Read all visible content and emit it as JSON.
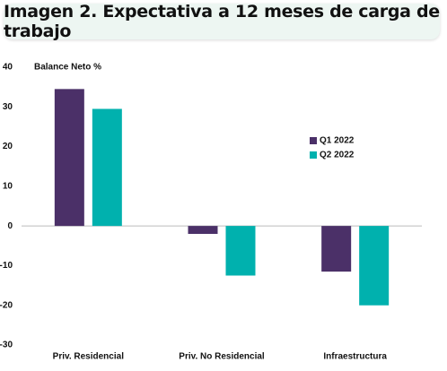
{
  "chart_data": {
    "type": "bar",
    "title": "Imagen 2. Expectativa a 12 meses de carga de trabajo",
    "y_axis_label": "Balance Neto %",
    "categories": [
      "Priv. Residencial",
      "Priv. No Residencial",
      "Infraestructura"
    ],
    "series": [
      {
        "name": "Q1 2022",
        "color": "#4b3068",
        "values": [
          34.5,
          -2,
          -11.5
        ]
      },
      {
        "name": "Q2 2022",
        "color": "#00b1ae",
        "values": [
          29.5,
          -12.5,
          -20
        ]
      }
    ],
    "ylim": [
      -30,
      40
    ],
    "yticks": [
      -30,
      -20,
      -10,
      0,
      10,
      20,
      30,
      40
    ],
    "grid": false
  }
}
